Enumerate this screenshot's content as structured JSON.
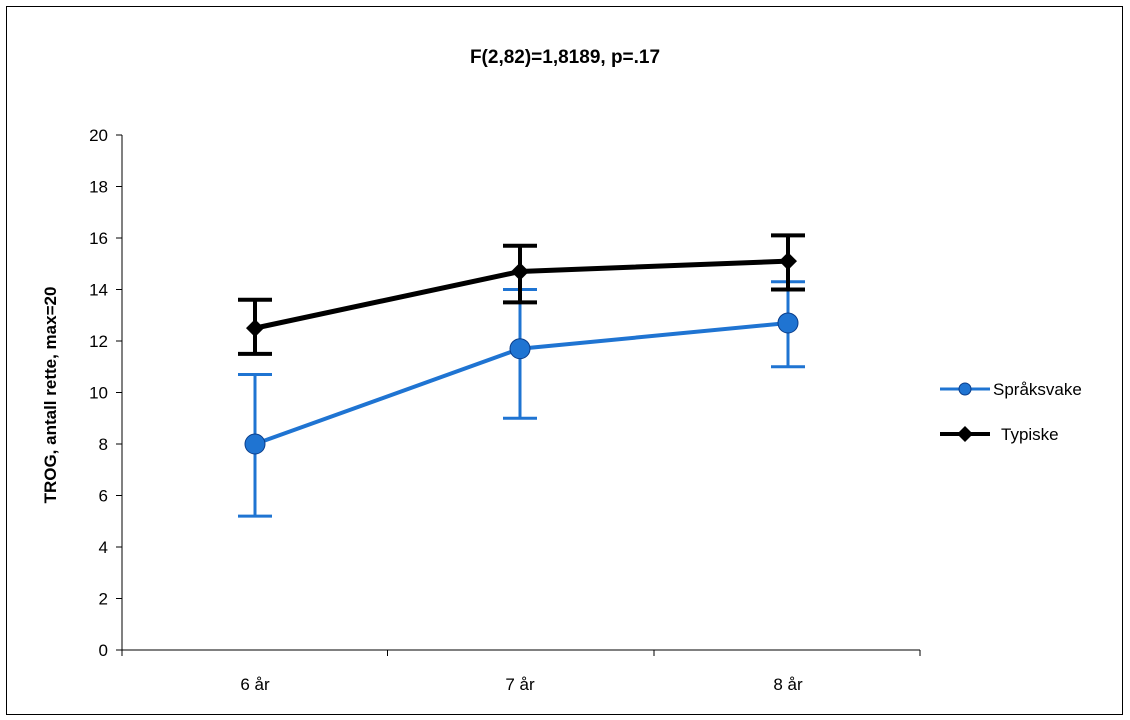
{
  "chart_data": {
    "type": "line",
    "title": "F(2,82)=1,8189, p=.17",
    "xlabel": "",
    "ylabel": "TROG, antall rette, max=20",
    "categories": [
      "6 år",
      "7 år",
      "8 år"
    ],
    "ylim": [
      0,
      20
    ],
    "yticks": [
      0,
      2,
      4,
      6,
      8,
      10,
      12,
      14,
      16,
      18,
      20
    ],
    "grid": false,
    "legend_position": "right",
    "error_bars": true,
    "series": [
      {
        "name": "Språksvake",
        "color": "#1f74d2",
        "marker": "circle",
        "values": [
          8.0,
          11.7,
          12.7
        ],
        "error_low": [
          5.2,
          9.0,
          11.0
        ],
        "error_high": [
          10.7,
          14.0,
          14.3
        ]
      },
      {
        "name": "Typiske",
        "color": "#000000",
        "marker": "diamond",
        "values": [
          12.5,
          14.7,
          15.1
        ],
        "error_low": [
          11.5,
          13.5,
          14.0
        ],
        "error_high": [
          13.6,
          15.7,
          16.1
        ]
      }
    ]
  }
}
